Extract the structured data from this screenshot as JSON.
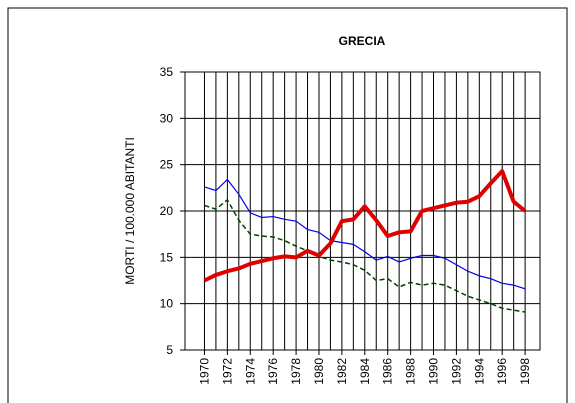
{
  "chart_data": {
    "type": "line",
    "title": "GRECIA",
    "ylabel": "MORTI / 100.000 ABITANTI",
    "x": [
      1970,
      1971,
      1972,
      1973,
      1974,
      1975,
      1976,
      1977,
      1978,
      1979,
      1980,
      1981,
      1982,
      1983,
      1984,
      1985,
      1986,
      1987,
      1988,
      1989,
      1990,
      1991,
      1992,
      1993,
      1994,
      1995,
      1996,
      1997,
      1998
    ],
    "series": [
      {
        "color": "#e00000",
        "width": 4,
        "dash": false,
        "values": [
          12.5,
          13.1,
          13.5,
          13.8,
          14.3,
          14.6,
          14.9,
          15.1,
          15.0,
          15.7,
          15.2,
          16.5,
          18.9,
          19.1,
          20.5,
          19.0,
          17.3,
          17.7,
          17.8,
          20.0,
          20.3,
          20.6,
          20.9,
          21.0,
          21.6,
          23.0,
          24.3,
          21.0,
          20.0
        ]
      },
      {
        "color": "#0000ee",
        "width": 1.2,
        "dash": false,
        "values": [
          22.6,
          22.2,
          23.4,
          21.8,
          19.8,
          19.3,
          19.4,
          19.1,
          18.9,
          18.0,
          17.7,
          16.8,
          16.6,
          16.4,
          15.6,
          14.7,
          15.1,
          14.5,
          14.9,
          15.2,
          15.2,
          14.9,
          14.2,
          13.5,
          13.0,
          12.7,
          12.2,
          12.0,
          11.6
        ]
      },
      {
        "color": "#004400",
        "width": 1.5,
        "dash": true,
        "values": [
          20.6,
          20.2,
          21.2,
          19.0,
          17.5,
          17.3,
          17.2,
          16.8,
          16.2,
          15.7,
          15.1,
          14.7,
          14.5,
          14.2,
          13.6,
          12.5,
          12.7,
          11.8,
          12.3,
          12.0,
          12.2,
          12.0,
          11.4,
          10.8,
          10.4,
          10.0,
          9.5,
          9.3,
          9.1
        ]
      }
    ],
    "xlim": [
      1968.3,
      1999.3
    ],
    "xticks": [
      1970,
      1972,
      1974,
      1976,
      1978,
      1980,
      1982,
      1984,
      1986,
      1988,
      1990,
      1992,
      1994,
      1996,
      1998
    ],
    "ylim": [
      5,
      35
    ],
    "yticks": [
      5,
      10,
      15,
      20,
      25,
      30,
      35
    ],
    "grid": true
  }
}
